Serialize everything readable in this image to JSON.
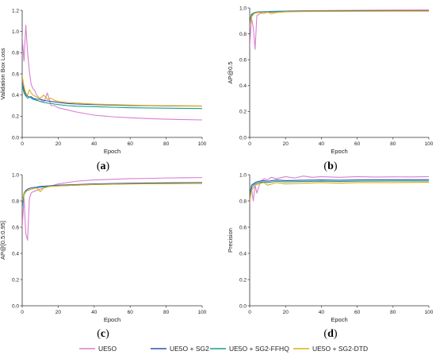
{
  "colors": {
    "UE5O": "#d97fd0",
    "UE5O + SG2": "#2a55b5",
    "UE5O + SG2-FFHQ": "#1a9e88",
    "UE5O + SG2-DTD": "#e0ad12"
  },
  "legend": [
    "UE5O",
    "UE5O + SG2",
    "UE5O + SG2-FFHQ",
    "UE5O + SG2-DTD"
  ],
  "chart_data": [
    {
      "type": "line",
      "panel": "a",
      "panel_label": "a",
      "xlabel": "Epoch",
      "ylabel": "Validation Box Loss",
      "xlim": [
        0,
        100
      ],
      "ylim": [
        0.0,
        1.2
      ],
      "xticks": [
        0,
        20,
        40,
        60,
        80,
        100
      ],
      "yticks": [
        0.0,
        0.2,
        0.4,
        0.6,
        0.8,
        1.0,
        1.2
      ],
      "grid": false,
      "series": [
        {
          "name": "UE5O",
          "x": [
            0,
            1,
            2,
            3,
            4,
            5,
            6,
            7,
            8,
            9,
            10,
            12,
            14,
            16,
            18,
            20,
            25,
            30,
            40,
            50,
            60,
            70,
            80,
            90,
            100
          ],
          "y": [
            0.95,
            0.72,
            1.06,
            0.8,
            0.62,
            0.5,
            0.46,
            0.44,
            0.4,
            0.38,
            0.36,
            0.33,
            0.42,
            0.3,
            0.3,
            0.28,
            0.26,
            0.24,
            0.21,
            0.195,
            0.185,
            0.178,
            0.172,
            0.168,
            0.165
          ]
        },
        {
          "name": "UE5O + SG2",
          "x": [
            0,
            1,
            2,
            3,
            4,
            5,
            6,
            8,
            10,
            12,
            14,
            16,
            18,
            20,
            25,
            30,
            40,
            50,
            60,
            70,
            80,
            90,
            100
          ],
          "y": [
            0.52,
            0.45,
            0.4,
            0.39,
            0.38,
            0.385,
            0.37,
            0.36,
            0.36,
            0.35,
            0.345,
            0.34,
            0.335,
            0.33,
            0.32,
            0.315,
            0.31,
            0.305,
            0.3,
            0.3,
            0.298,
            0.297,
            0.296
          ]
        },
        {
          "name": "UE5O + SG2-FFHQ",
          "x": [
            0,
            1,
            2,
            3,
            4,
            5,
            6,
            8,
            10,
            12,
            14,
            16,
            18,
            20,
            25,
            30,
            40,
            50,
            60,
            70,
            80,
            90,
            100
          ],
          "y": [
            0.5,
            0.42,
            0.39,
            0.37,
            0.38,
            0.37,
            0.36,
            0.35,
            0.34,
            0.33,
            0.325,
            0.32,
            0.315,
            0.31,
            0.3,
            0.295,
            0.29,
            0.285,
            0.28,
            0.278,
            0.276,
            0.274,
            0.272
          ]
        },
        {
          "name": "UE5O + SG2-DTD",
          "x": [
            0,
            1,
            2,
            3,
            4,
            5,
            6,
            8,
            10,
            12,
            14,
            16,
            18,
            20,
            25,
            30,
            40,
            50,
            60,
            70,
            80,
            90,
            100
          ],
          "y": [
            0.58,
            0.48,
            0.42,
            0.4,
            0.45,
            0.42,
            0.4,
            0.38,
            0.37,
            0.4,
            0.36,
            0.37,
            0.35,
            0.34,
            0.33,
            0.325,
            0.315,
            0.31,
            0.305,
            0.302,
            0.3,
            0.298,
            0.297
          ]
        }
      ]
    },
    {
      "type": "line",
      "panel": "b",
      "panel_label": "b",
      "xlabel": "Epoch",
      "ylabel": "AP@0.5",
      "xlim": [
        0,
        100
      ],
      "ylim": [
        0.0,
        1.0
      ],
      "xticks": [
        0,
        20,
        40,
        60,
        80,
        100
      ],
      "yticks": [
        0.0,
        0.2,
        0.4,
        0.6,
        0.8,
        1.0
      ],
      "grid": false,
      "series": [
        {
          "name": "UE5O",
          "x": [
            0,
            1,
            2,
            3,
            4,
            5,
            6,
            8,
            10,
            15,
            20,
            30,
            40,
            60,
            80,
            100
          ],
          "y": [
            0.7,
            0.92,
            0.85,
            0.68,
            0.94,
            0.95,
            0.96,
            0.96,
            0.965,
            0.97,
            0.975,
            0.978,
            0.98,
            0.982,
            0.984,
            0.985
          ]
        },
        {
          "name": "UE5O + SG2",
          "x": [
            0,
            1,
            2,
            3,
            5,
            8,
            10,
            15,
            20,
            30,
            40,
            60,
            80,
            100
          ],
          "y": [
            0.9,
            0.95,
            0.96,
            0.965,
            0.97,
            0.97,
            0.972,
            0.974,
            0.975,
            0.976,
            0.977,
            0.978,
            0.978,
            0.978
          ]
        },
        {
          "name": "UE5O + SG2-FFHQ",
          "x": [
            0,
            1,
            2,
            3,
            5,
            8,
            10,
            15,
            20,
            30,
            40,
            60,
            80,
            100
          ],
          "y": [
            0.88,
            0.94,
            0.96,
            0.965,
            0.968,
            0.97,
            0.97,
            0.972,
            0.973,
            0.974,
            0.975,
            0.976,
            0.976,
            0.976
          ]
        },
        {
          "name": "UE5O + SG2-DTD",
          "x": [
            0,
            1,
            2,
            3,
            5,
            8,
            10,
            12,
            15,
            20,
            30,
            40,
            60,
            80,
            100
          ],
          "y": [
            0.86,
            0.93,
            0.95,
            0.96,
            0.965,
            0.96,
            0.97,
            0.955,
            0.965,
            0.97,
            0.972,
            0.973,
            0.974,
            0.975,
            0.975
          ]
        }
      ]
    },
    {
      "type": "line",
      "panel": "c",
      "panel_label": "c",
      "xlabel": "Epoch",
      "ylabel": "AP@[0.5:0.95]",
      "xlim": [
        0,
        100
      ],
      "ylim": [
        0.0,
        1.0
      ],
      "xticks": [
        0,
        20,
        40,
        60,
        80,
        100
      ],
      "yticks": [
        0.0,
        0.2,
        0.4,
        0.6,
        0.8,
        1.0
      ],
      "grid": false,
      "series": [
        {
          "name": "UE5O",
          "x": [
            0,
            1,
            2,
            3,
            4,
            5,
            6,
            8,
            10,
            15,
            20,
            30,
            40,
            50,
            60,
            70,
            80,
            90,
            100
          ],
          "y": [
            0.6,
            0.82,
            0.55,
            0.5,
            0.82,
            0.86,
            0.87,
            0.88,
            0.89,
            0.91,
            0.93,
            0.95,
            0.96,
            0.965,
            0.97,
            0.972,
            0.975,
            0.977,
            0.978
          ]
        },
        {
          "name": "UE5O + SG2",
          "x": [
            0,
            1,
            2,
            3,
            5,
            8,
            10,
            15,
            20,
            30,
            40,
            60,
            80,
            100
          ],
          "y": [
            0.78,
            0.86,
            0.88,
            0.89,
            0.9,
            0.905,
            0.91,
            0.915,
            0.92,
            0.925,
            0.93,
            0.935,
            0.938,
            0.94
          ]
        },
        {
          "name": "UE5O + SG2-FFHQ",
          "x": [
            0,
            1,
            2,
            3,
            5,
            8,
            10,
            15,
            20,
            30,
            40,
            60,
            80,
            100
          ],
          "y": [
            0.75,
            0.85,
            0.87,
            0.88,
            0.89,
            0.9,
            0.905,
            0.91,
            0.915,
            0.92,
            0.925,
            0.93,
            0.932,
            0.934
          ]
        },
        {
          "name": "UE5O + SG2-DTD",
          "x": [
            0,
            1,
            2,
            3,
            5,
            8,
            10,
            12,
            15,
            20,
            30,
            40,
            60,
            80,
            100
          ],
          "y": [
            0.8,
            0.86,
            0.87,
            0.88,
            0.89,
            0.9,
            0.87,
            0.9,
            0.91,
            0.915,
            0.92,
            0.925,
            0.93,
            0.932,
            0.935
          ]
        }
      ]
    },
    {
      "type": "line",
      "panel": "d",
      "panel_label": "d",
      "xlabel": "Epoch",
      "ylabel": "Precision",
      "xlim": [
        0,
        100
      ],
      "ylim": [
        0.0,
        1.0
      ],
      "xticks": [
        0,
        20,
        40,
        60,
        80,
        100
      ],
      "yticks": [
        0.0,
        0.2,
        0.4,
        0.6,
        0.8,
        1.0
      ],
      "grid": false,
      "series": [
        {
          "name": "UE5O",
          "x": [
            0,
            1,
            2,
            3,
            4,
            6,
            8,
            10,
            12,
            15,
            20,
            25,
            30,
            35,
            40,
            50,
            60,
            70,
            80,
            90,
            100
          ],
          "y": [
            0.78,
            0.9,
            0.8,
            0.92,
            0.86,
            0.95,
            0.97,
            0.96,
            0.98,
            0.97,
            0.985,
            0.975,
            0.99,
            0.98,
            0.985,
            0.98,
            0.985,
            0.982,
            0.984,
            0.983,
            0.985
          ]
        },
        {
          "name": "UE5O + SG2",
          "x": [
            0,
            1,
            2,
            3,
            5,
            8,
            10,
            15,
            20,
            30,
            40,
            50,
            60,
            80,
            100
          ],
          "y": [
            0.85,
            0.92,
            0.93,
            0.94,
            0.95,
            0.955,
            0.95,
            0.96,
            0.955,
            0.958,
            0.96,
            0.958,
            0.96,
            0.962,
            0.962
          ]
        },
        {
          "name": "UE5O + SG2-FFHQ",
          "x": [
            0,
            1,
            2,
            3,
            5,
            8,
            10,
            15,
            20,
            30,
            40,
            50,
            60,
            80,
            100
          ],
          "y": [
            0.82,
            0.9,
            0.92,
            0.93,
            0.94,
            0.945,
            0.94,
            0.95,
            0.945,
            0.948,
            0.95,
            0.948,
            0.95,
            0.952,
            0.952
          ]
        },
        {
          "name": "UE5O + SG2-DTD",
          "x": [
            0,
            1,
            2,
            3,
            5,
            8,
            10,
            15,
            20,
            30,
            40,
            50,
            60,
            80,
            100
          ],
          "y": [
            0.8,
            0.88,
            0.9,
            0.92,
            0.93,
            0.94,
            0.92,
            0.94,
            0.93,
            0.935,
            0.94,
            0.935,
            0.94,
            0.94,
            0.942
          ]
        }
      ]
    }
  ]
}
